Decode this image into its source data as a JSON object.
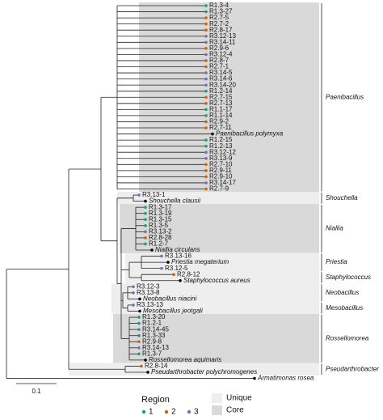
{
  "clades": [
    {
      "name": "Paenibacillus",
      "type": "Core",
      "leaves": [
        {
          "label": "R1.3-4",
          "region": 1
        },
        {
          "label": "R1.3-27",
          "region": 1
        },
        {
          "label": "R2.7-5",
          "region": 2
        },
        {
          "label": "R2.7-2",
          "region": 2
        },
        {
          "label": "R2.8-17",
          "region": 2
        },
        {
          "label": "R3.12-13",
          "region": 3
        },
        {
          "label": "R3.14-11",
          "region": 3
        },
        {
          "label": "R2.9-6",
          "region": 2
        },
        {
          "label": "R3.12-4",
          "region": 3
        },
        {
          "label": "R2.8-7",
          "region": 2
        },
        {
          "label": "R2.7-1",
          "region": 2
        },
        {
          "label": "R3.14-5",
          "region": 3
        },
        {
          "label": "R3.14-6",
          "region": 3
        },
        {
          "label": "R3.14-20",
          "region": 3
        },
        {
          "label": "R1.2-14",
          "region": 1
        },
        {
          "label": "R2.7-15",
          "region": 2
        },
        {
          "label": "R2.7-13",
          "region": 2
        },
        {
          "label": "R1.1-17",
          "region": 1
        },
        {
          "label": "R1.1-14",
          "region": 1
        },
        {
          "label": "R2.9-2",
          "region": 2
        },
        {
          "label": "R2.7-11",
          "region": 2
        },
        {
          "label": "Paenibacillus polymyxa",
          "region": null
        },
        {
          "label": "R1.2-15",
          "region": 1
        },
        {
          "label": "R1.2-13",
          "region": 1
        },
        {
          "label": "R3.12-12",
          "region": 3
        },
        {
          "label": "R3.13-9",
          "region": 3
        },
        {
          "label": "R2.7-10",
          "region": 2
        },
        {
          "label": "R2.9-11",
          "region": 2
        },
        {
          "label": "R2.9-10",
          "region": 2
        },
        {
          "label": "R3.14-17",
          "region": 3
        },
        {
          "label": "R2.7-9",
          "region": 2
        }
      ]
    },
    {
      "name": "Shouchella",
      "type": "Unique",
      "leaves": [
        {
          "label": "R3.13-1",
          "region": 3
        },
        {
          "label": "Shouchella clausii",
          "region": null
        }
      ]
    },
    {
      "name": "Niallia",
      "type": "Core",
      "leaves": [
        {
          "label": "R1.3-17",
          "region": 1
        },
        {
          "label": "R1.3-19",
          "region": 1
        },
        {
          "label": "R1.3-15",
          "region": 1
        },
        {
          "label": "R1.3-5",
          "region": 1
        },
        {
          "label": "R3.13-2",
          "region": 3
        },
        {
          "label": "R2.8-28",
          "region": 2
        },
        {
          "label": "R1.2-7",
          "region": 1
        },
        {
          "label": "Niallia circulans",
          "region": null
        }
      ]
    },
    {
      "name": "Priestia",
      "type": "Unique",
      "leaves": [
        {
          "label": "R3.13-16",
          "region": 3
        },
        {
          "label": "Priestia megaterium",
          "region": null
        },
        {
          "label": "R3.12-5",
          "region": 3
        }
      ]
    },
    {
      "name": "Staphylococcus",
      "type": "Unique",
      "leaves": [
        {
          "label": "R2.8-12",
          "region": 2
        },
        {
          "label": "Staphylococcus aureus",
          "region": null
        }
      ]
    },
    {
      "name": "Neobacillus",
      "type": "Unique",
      "leaves": [
        {
          "label": "R3.12-3",
          "region": 3
        },
        {
          "label": "R3.13-8",
          "region": 3
        },
        {
          "label": "Neobacillus niacini",
          "region": null
        }
      ]
    },
    {
      "name": "Mesobacillus",
      "type": "Unique",
      "leaves": [
        {
          "label": "R3.13-13",
          "region": 3
        },
        {
          "label": "Mesobacillus jeotgali",
          "region": null
        }
      ]
    },
    {
      "name": "Rossellomorea",
      "type": "Core",
      "leaves": [
        {
          "label": "R1.3-20",
          "region": 1
        },
        {
          "label": "R1.2-1",
          "region": 1
        },
        {
          "label": "R3.14-45",
          "region": 3
        },
        {
          "label": "R1.3-33",
          "region": 1
        },
        {
          "label": "R2.9-8",
          "region": 2
        },
        {
          "label": "R3.14-13",
          "region": 3
        },
        {
          "label": "R1.3-7",
          "region": 1
        },
        {
          "label": "Rossellomorea aquimaris",
          "region": null
        }
      ]
    },
    {
      "name": "Pseudarthrobacter",
      "type": "Unique",
      "leaves": [
        {
          "label": "R2.8-14",
          "region": 2
        },
        {
          "label": "Pseudarthrobacter polychromogenes",
          "region": null
        }
      ]
    }
  ],
  "outgroup": {
    "label": "Armatimonas rosea"
  },
  "scale_bar": "0.1",
  "legend": {
    "title": "Region",
    "items": [
      "1",
      "2",
      "3"
    ],
    "colors": [
      "#1b9e77",
      "#d95f02",
      "#7570b3"
    ],
    "boxes": [
      {
        "label": "Unique",
        "color": "#eeeeee"
      },
      {
        "label": "Core",
        "color": "#d9d9d9"
      }
    ]
  }
}
